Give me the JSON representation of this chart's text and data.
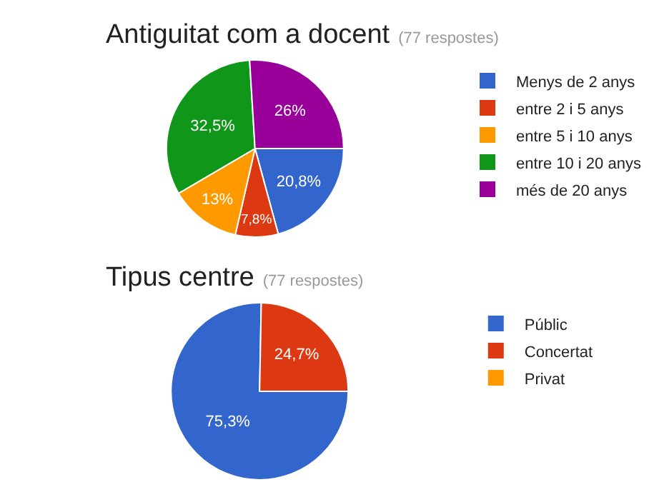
{
  "chart_data": [
    {
      "type": "pie",
      "title": "Antiguitat com a docent",
      "subtitle": "(77 respostes)",
      "categories": [
        "Menys de 2 anys",
        "entre 2 i 5 anys",
        "entre 5 i 10 anys",
        "entre 10 i 20 anys",
        "més de 20 anys"
      ],
      "values": [
        20.8,
        7.8,
        13,
        32.5,
        26
      ],
      "colors": [
        "#3366cc",
        "#dc3912",
        "#ff9900",
        "#109618",
        "#990099"
      ],
      "value_labels": [
        "20,8%",
        "7,8%",
        "13%",
        "32,5%",
        "26%"
      ],
      "legend": "right"
    },
    {
      "type": "pie",
      "title": "Tipus centre",
      "subtitle": "(77 respostes)",
      "categories": [
        "Públic",
        "Concertat",
        "Privat"
      ],
      "values": [
        75.3,
        24.7,
        0
      ],
      "colors": [
        "#3366cc",
        "#dc3912",
        "#ff9900"
      ],
      "value_labels": [
        "75,3%",
        "24,7%",
        null
      ],
      "legend": "right"
    }
  ]
}
